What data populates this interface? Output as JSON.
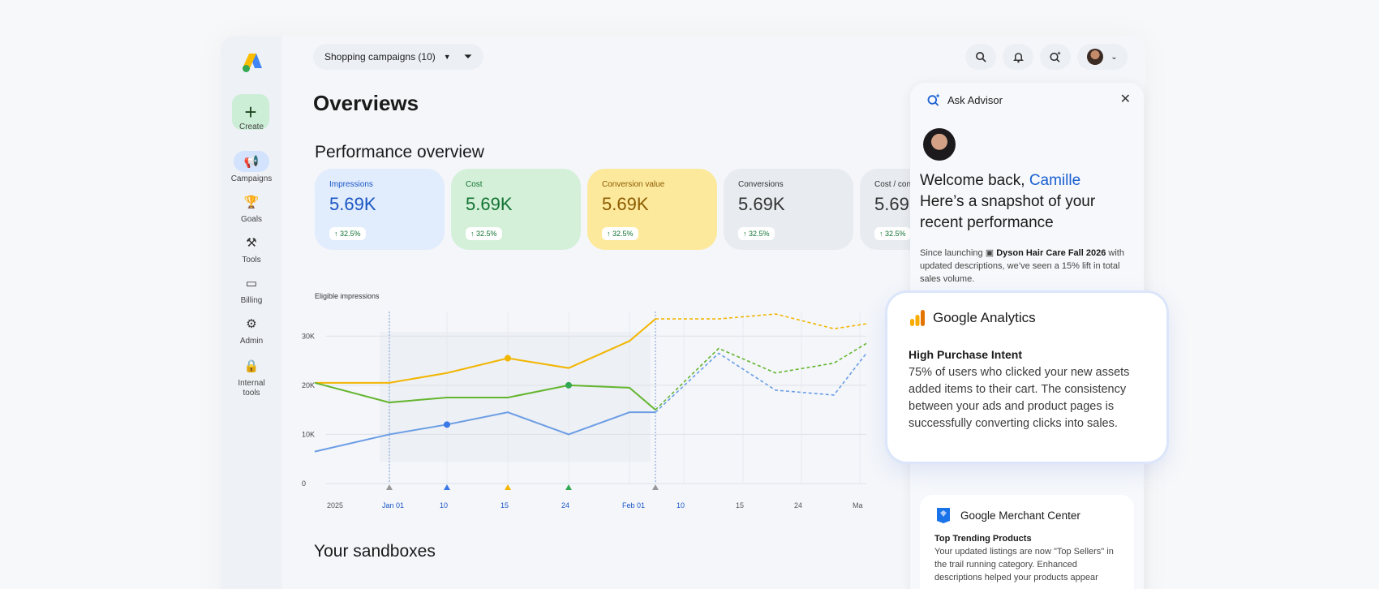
{
  "topbar": {
    "campaign_filter": "Shopping campaigns (10)",
    "icons": [
      "search-icon",
      "bell-icon",
      "advisor-sparkle-icon",
      "avatar",
      "chevron-down-icon"
    ]
  },
  "rail": {
    "create_label": "Create",
    "items": [
      {
        "label": "Campaigns",
        "icon": "megaphone-icon"
      },
      {
        "label": "Goals",
        "icon": "trophy-icon"
      },
      {
        "label": "Tools",
        "icon": "tools-icon"
      },
      {
        "label": "Billing",
        "icon": "card-icon"
      },
      {
        "label": "Admin",
        "icon": "gear-icon"
      },
      {
        "label": "Internal tools",
        "icon": "lock-icon"
      }
    ]
  },
  "page": {
    "title": "Overviews",
    "performance_title": "Performance overview",
    "sandboxes_title": "Your sandboxes"
  },
  "cards": [
    {
      "title": "Impressions",
      "value": "5.69K",
      "delta": "↑ 32.5%",
      "color": "#1a56c4"
    },
    {
      "title": "Cost",
      "value": "5.69K",
      "delta": "↑ 32.5%",
      "color": "#137333"
    },
    {
      "title": "Conversion value",
      "value": "5.69K",
      "delta": "↑ 32.5%",
      "color": "#8a5a00"
    },
    {
      "title": "Conversions",
      "value": "5.69K",
      "delta": "↑ 32.5%",
      "color": "#333333"
    },
    {
      "title": "Cost / con",
      "value": "5.69",
      "delta": "↑ 32.5%",
      "color": "#333333"
    }
  ],
  "chart_data": {
    "type": "line",
    "title": "Eligible impressions",
    "y_ticks": [
      "30K",
      "20K",
      "10K",
      "0"
    ],
    "ylim": [
      0,
      35000
    ],
    "x_ticks": [
      "2025",
      "Jan 01",
      "10",
      "15",
      "24",
      "Feb 01",
      "10",
      "15",
      "24",
      "Ma"
    ],
    "grid": true,
    "series": [
      {
        "color": "#f2b500",
        "values": [
          20500,
          20500,
          22500,
          25500,
          23500,
          29000,
          33500,
          33500,
          34500,
          31500,
          32500
        ]
      },
      {
        "color": "#63b52e",
        "values": [
          20500,
          16500,
          17500,
          17500,
          20000,
          19500,
          15000,
          27500,
          22500,
          24500,
          28500
        ]
      },
      {
        "color": "#6b9de5",
        "values": [
          6500,
          10000,
          12000,
          14500,
          10000,
          14500,
          14500,
          26500,
          19000,
          18000,
          26500
        ]
      }
    ],
    "markers": [
      "Jan 01",
      "10",
      "15",
      "24",
      "Feb 01"
    ]
  },
  "advisor": {
    "title": "Ask Advisor",
    "welcome_prefix": "Welcome back, ",
    "welcome_name": "Camille",
    "welcome_rest": "Here’s a snapshot of your recent performance",
    "body_prefix": "Since launching ",
    "campaign_name": "Dyson Hair Care Fall 2026",
    "body_suffix": " with updated descriptions, we’ve seen a 15% lift in total sales volume."
  },
  "ga_card": {
    "title": "Google Analytics",
    "subtitle": "High Purchase Intent",
    "text": "75% of users who clicked your new assets added items to their cart. The consistency between your ads and product pages is successfully converting clicks into sales."
  },
  "gmc_card": {
    "title": "Google Merchant Center",
    "subtitle": "Top Trending Products",
    "text": "Your updated listings are now \"Top Sellers\" in the trail running category. Enhanced descriptions helped your products appear"
  }
}
